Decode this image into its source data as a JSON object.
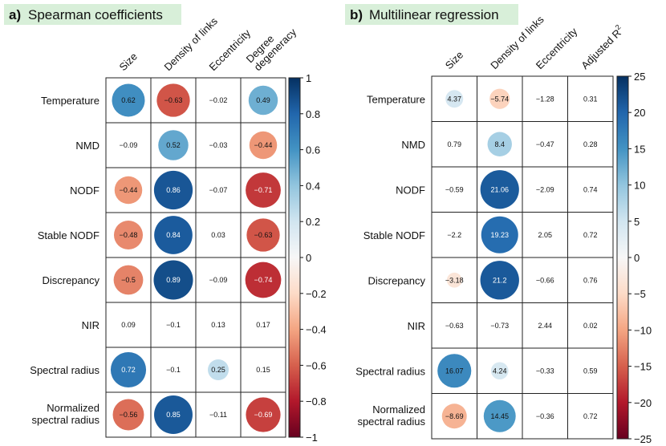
{
  "chart_data": [
    {
      "type": "heatmap",
      "panel_label": "a)",
      "title": "Spearman coefficients",
      "rows": [
        "Temperature",
        "NMD",
        "NODF",
        "Stable NODF",
        "Discrepancy",
        "NIR",
        "Spectral radius",
        "Normalized spectral radius"
      ],
      "columns": [
        "Size",
        "Density of links",
        "Eccentricity",
        "Degree degeneracy"
      ],
      "values": [
        [
          0.62,
          -0.63,
          -0.02,
          0.49
        ],
        [
          -0.09,
          0.52,
          -0.03,
          -0.44
        ],
        [
          -0.44,
          0.86,
          -0.07,
          -0.71
        ],
        [
          -0.48,
          0.84,
          0.03,
          -0.63
        ],
        [
          -0.5,
          0.89,
          -0.09,
          -0.74
        ],
        [
          0.09,
          -0.1,
          0.13,
          0.17
        ],
        [
          0.72,
          -0.1,
          0.25,
          0.15
        ],
        [
          -0.56,
          0.85,
          -0.11,
          -0.69
        ]
      ],
      "value_labels": [
        [
          "0.62",
          "−0.63",
          "−0.02",
          "0.49"
        ],
        [
          "−0.09",
          "0.52",
          "−0.03",
          "−0.44"
        ],
        [
          "−0.44",
          "0.86",
          "−0.07",
          "−0.71"
        ],
        [
          "−0.48",
          "0.84",
          "0.03",
          "−0.63"
        ],
        [
          "−0.5",
          "0.89",
          "−0.09",
          "−0.74"
        ],
        [
          "0.09",
          "−0.1",
          "0.13",
          "0.17"
        ],
        [
          "0.72",
          "−0.1",
          "0.25",
          "0.15"
        ],
        [
          "−0.56",
          "0.85",
          "−0.11",
          "−0.69"
        ]
      ],
      "circle_threshold": 0.25,
      "colorbar": {
        "range": [
          -1,
          1
        ],
        "ticks": [
          1,
          0.8,
          0.6,
          0.4,
          0.2,
          0,
          -0.2,
          -0.4,
          -0.6,
          -0.8,
          -1
        ],
        "tick_labels": [
          "1",
          "0.8",
          "0.6",
          "0.4",
          "0.2",
          "0",
          "−0.2",
          "−0.4",
          "−0.6",
          "−0.8",
          "−1"
        ]
      }
    },
    {
      "type": "heatmap",
      "panel_label": "b)",
      "title": "Multilinear regression",
      "rows": [
        "Temperature",
        "NMD",
        "NODF",
        "Stable NODF",
        "Discrepancy",
        "NIR",
        "Spectral radius",
        "Normalized spectral radius"
      ],
      "columns": [
        "Size",
        "Density of links",
        "Eccentricity",
        "Adjusted R²"
      ],
      "values": [
        [
          4.37,
          -5.74,
          -1.28,
          0.31
        ],
        [
          0.79,
          8.4,
          -0.47,
          0.28
        ],
        [
          -0.59,
          21.06,
          -2.09,
          0.74
        ],
        [
          -2.2,
          19.23,
          2.05,
          0.72
        ],
        [
          -3.18,
          21.2,
          -0.66,
          0.76
        ],
        [
          -0.63,
          -0.73,
          2.44,
          0.02
        ],
        [
          16.07,
          4.24,
          -0.33,
          0.59
        ],
        [
          -8.69,
          14.45,
          -0.36,
          0.72
        ]
      ],
      "value_labels": [
        [
          "4.37",
          "−5.74",
          "−1.28",
          "0.31"
        ],
        [
          "0.79",
          "8.4",
          "−0.47",
          "0.28"
        ],
        [
          "−0.59",
          "21.06",
          "−2.09",
          "0.74"
        ],
        [
          "−2.2",
          "19.23",
          "2.05",
          "0.72"
        ],
        [
          "−3.18",
          "21.2",
          "−0.66",
          "0.76"
        ],
        [
          "−0.63",
          "−0.73",
          "2.44",
          "0.02"
        ],
        [
          "16.07",
          "4.24",
          "−0.33",
          "0.59"
        ],
        [
          "−8.69",
          "14.45",
          "−0.36",
          "0.72"
        ]
      ],
      "circle_threshold": 3,
      "circle_columns": [
        0,
        1,
        2
      ],
      "colorbar": {
        "range": [
          -25,
          25
        ],
        "ticks": [
          25,
          20,
          15,
          10,
          5,
          0,
          -5,
          -10,
          -15,
          -20,
          -25
        ],
        "tick_labels": [
          "25",
          "20",
          "15",
          "10",
          "5",
          "0",
          "−5",
          "−10",
          "−15",
          "−20",
          "−25"
        ]
      }
    }
  ],
  "colors": {
    "scale": [
      "#67001f",
      "#b2182b",
      "#d6604d",
      "#f4a582",
      "#fddbc7",
      "#f7f7f7",
      "#d1e5f0",
      "#92c5de",
      "#4393c3",
      "#2166ac",
      "#053061"
    ],
    "title_background": "#d8efd9"
  }
}
